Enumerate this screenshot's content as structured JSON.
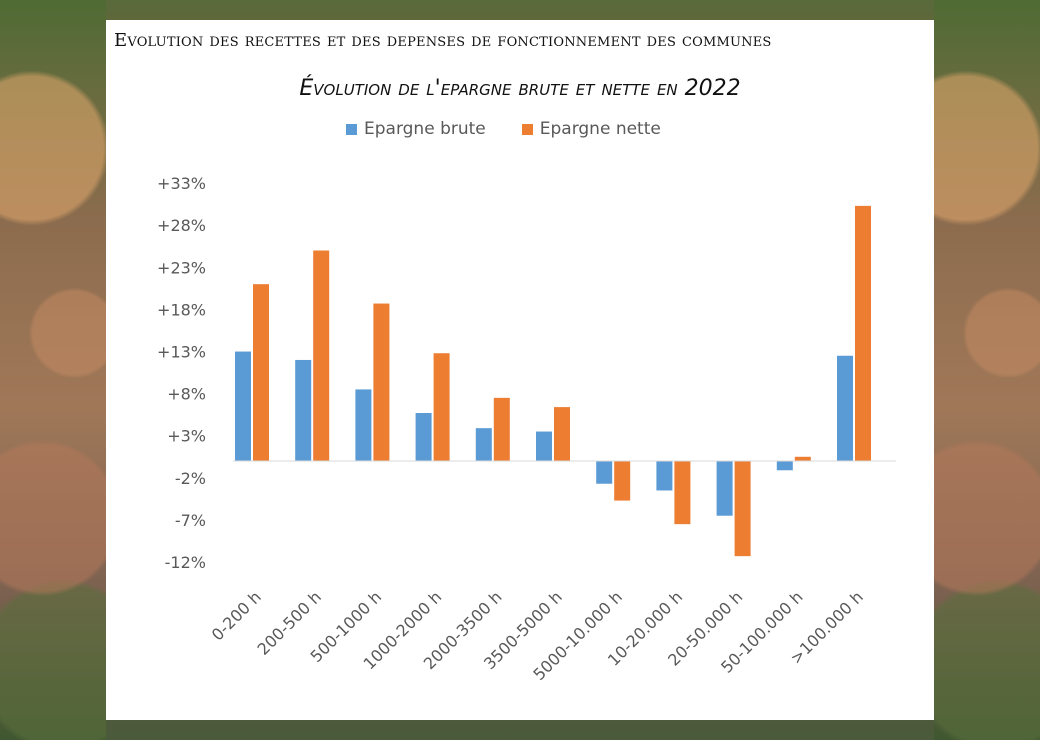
{
  "header": {
    "title": "Evolution des recettes et des depenses de fonctionnement des communes"
  },
  "chart_data": {
    "type": "bar",
    "title": "Évolution de l'epargne brute et nette en 2022",
    "xlabel": "",
    "ylabel": "",
    "categories": [
      "0-200 h",
      "200-500 h",
      "500-1000 h",
      "1000-2000 h",
      "2000-3500 h",
      "3500-5000 h",
      "5000-10.000 h",
      "10-20.000 h",
      "20-50.000 h",
      "50-100.000 h",
      ">100.000 h"
    ],
    "series": [
      {
        "name": "Epargne brute",
        "color": "#5B9BD5",
        "values": [
          13.0,
          12.0,
          8.5,
          5.7,
          3.9,
          3.5,
          -2.7,
          -3.5,
          -6.5,
          -1.1,
          12.5
        ]
      },
      {
        "name": "Epargne nette",
        "color": "#ED7D31",
        "values": [
          21.0,
          25.0,
          18.7,
          12.8,
          7.5,
          6.4,
          -4.7,
          -7.5,
          -11.3,
          0.5,
          30.3
        ]
      }
    ],
    "yticks": [
      "+33%",
      "+28%",
      "+23%",
      "+18%",
      "+13%",
      "+8%",
      "+3%",
      "-2%",
      "-7%",
      "-12%"
    ],
    "ytick_values": [
      33,
      28,
      23,
      18,
      13,
      8,
      3,
      -2,
      -7,
      -12
    ],
    "ylim": [
      -12,
      33
    ],
    "legend_position": "top",
    "grid": false
  }
}
